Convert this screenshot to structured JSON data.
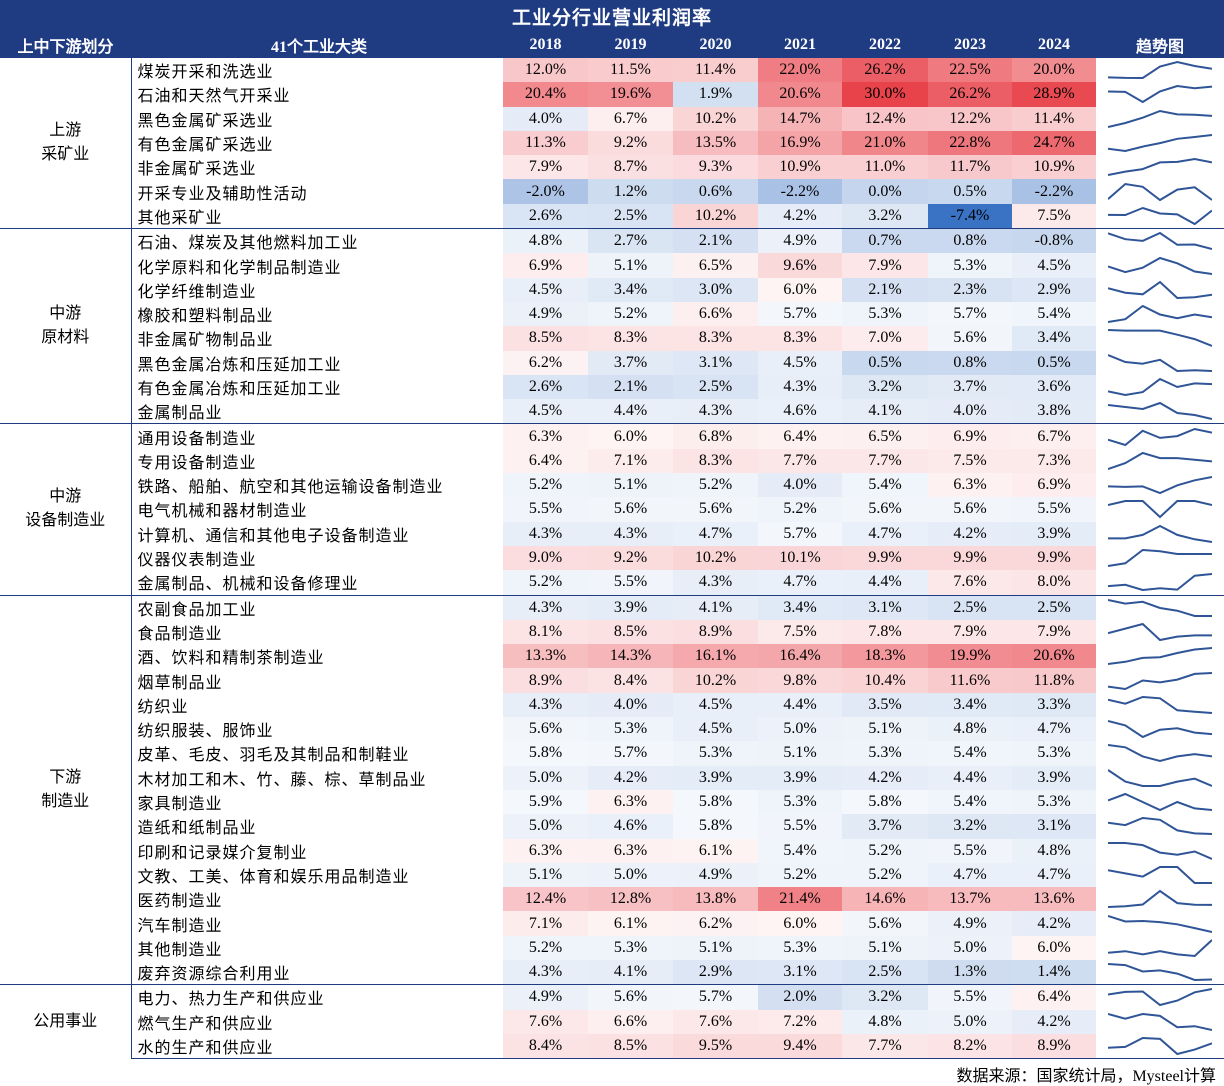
{
  "title": "工业分行业营业利润率",
  "headers": {
    "group": "上中下游划分",
    "industry": "41个工业大类",
    "years": [
      "2018",
      "2019",
      "2020",
      "2021",
      "2022",
      "2023",
      "2024"
    ],
    "trend": "趋势图"
  },
  "colors": {
    "header_bg": "#1f3b82",
    "positive": "#e8424a",
    "negative": "#3a72c4",
    "sparkline": "#2f5597"
  },
  "groups": [
    {
      "name": "上游\n采矿业",
      "rows": [
        {
          "name": "煤炭开采和洗选业",
          "values": [
            12.0,
            11.5,
            11.4,
            22.0,
            26.2,
            22.5,
            20.0
          ]
        },
        {
          "name": "石油和天然气开采业",
          "values": [
            20.4,
            19.6,
            1.9,
            20.6,
            30.0,
            26.2,
            28.9
          ]
        },
        {
          "name": "黑色金属矿采选业",
          "values": [
            4.0,
            6.7,
            10.2,
            14.7,
            12.4,
            12.2,
            11.4
          ]
        },
        {
          "name": "有色金属矿采选业",
          "values": [
            11.3,
            9.2,
            13.5,
            16.9,
            21.0,
            22.8,
            24.7
          ]
        },
        {
          "name": "非金属矿采选业",
          "values": [
            7.9,
            8.7,
            9.3,
            10.9,
            11.0,
            11.7,
            10.9
          ]
        },
        {
          "name": "开采专业及辅助性活动",
          "values": [
            -2.0,
            1.2,
            0.6,
            -2.2,
            0.0,
            0.5,
            -2.2
          ]
        },
        {
          "name": "其他采矿业",
          "values": [
            2.6,
            2.5,
            10.2,
            4.2,
            3.2,
            -7.4,
            7.5
          ]
        }
      ]
    },
    {
      "name": "中游\n原材料",
      "rows": [
        {
          "name": "石油、煤炭及其他燃料加工业",
          "values": [
            4.8,
            2.7,
            2.1,
            4.9,
            0.7,
            0.8,
            -0.8
          ]
        },
        {
          "name": "化学原料和化学制品制造业",
          "values": [
            6.9,
            5.1,
            6.5,
            9.6,
            7.9,
            5.3,
            4.5
          ]
        },
        {
          "name": "化学纤维制造业",
          "values": [
            4.5,
            3.4,
            3.0,
            6.0,
            2.1,
            2.3,
            2.9
          ]
        },
        {
          "name": "橡胶和塑料制品业",
          "values": [
            4.9,
            5.2,
            6.6,
            5.7,
            5.3,
            5.7,
            5.4
          ]
        },
        {
          "name": "非金属矿物制品业",
          "values": [
            8.5,
            8.3,
            8.3,
            8.3,
            7.0,
            5.6,
            3.4
          ]
        },
        {
          "name": "黑色金属冶炼和压延加工业",
          "values": [
            6.2,
            3.7,
            3.1,
            4.5,
            0.5,
            0.8,
            0.5
          ]
        },
        {
          "name": "有色金属冶炼和压延加工业",
          "values": [
            2.6,
            2.1,
            2.5,
            4.3,
            3.2,
            3.7,
            3.6
          ]
        },
        {
          "name": "金属制品业",
          "values": [
            4.5,
            4.4,
            4.3,
            4.6,
            4.1,
            4.0,
            3.8
          ]
        }
      ]
    },
    {
      "name": "中游\n设备制造业",
      "rows": [
        {
          "name": "通用设备制造业",
          "values": [
            6.3,
            6.0,
            6.8,
            6.4,
            6.5,
            6.9,
            6.7
          ]
        },
        {
          "name": "专用设备制造业",
          "values": [
            6.4,
            7.1,
            8.3,
            7.7,
            7.7,
            7.5,
            7.3
          ]
        },
        {
          "name": "铁路、船舶、航空和其他运输设备制造业",
          "values": [
            5.2,
            5.1,
            5.2,
            4.0,
            5.4,
            6.3,
            6.9
          ]
        },
        {
          "name": "电气机械和器材制造业",
          "values": [
            5.5,
            5.6,
            5.6,
            5.2,
            5.6,
            5.6,
            5.5
          ]
        },
        {
          "name": "计算机、通信和其他电子设备制造业",
          "values": [
            4.3,
            4.3,
            4.7,
            5.7,
            4.7,
            4.2,
            3.9
          ]
        },
        {
          "name": "仪器仪表制造业",
          "values": [
            9.0,
            9.2,
            10.2,
            10.1,
            9.9,
            9.9,
            9.9
          ]
        },
        {
          "name": "金属制品、机械和设备修理业",
          "values": [
            5.2,
            5.5,
            4.3,
            4.7,
            4.4,
            7.6,
            8.0
          ]
        }
      ]
    },
    {
      "name": "下游\n制造业",
      "rows": [
        {
          "name": "农副食品加工业",
          "values": [
            4.3,
            3.9,
            4.1,
            3.4,
            3.1,
            2.5,
            2.5
          ]
        },
        {
          "name": "食品制造业",
          "values": [
            8.1,
            8.5,
            8.9,
            7.5,
            7.8,
            7.9,
            7.9
          ]
        },
        {
          "name": "酒、饮料和精制茶制造业",
          "values": [
            13.3,
            14.3,
            16.1,
            16.4,
            18.3,
            19.9,
            20.6
          ]
        },
        {
          "name": "烟草制品业",
          "values": [
            8.9,
            8.4,
            10.2,
            9.8,
            10.4,
            11.6,
            11.8
          ]
        },
        {
          "name": "纺织业",
          "values": [
            4.3,
            4.0,
            4.5,
            4.4,
            3.5,
            3.4,
            3.3
          ]
        },
        {
          "name": "纺织服装、服饰业",
          "values": [
            5.6,
            5.3,
            4.5,
            5.0,
            5.1,
            4.8,
            4.7
          ]
        },
        {
          "name": "皮革、毛皮、羽毛及其制品和制鞋业",
          "values": [
            5.8,
            5.7,
            5.3,
            5.1,
            5.3,
            5.4,
            5.3
          ]
        },
        {
          "name": "木材加工和木、竹、藤、棕、草制品业",
          "values": [
            5.0,
            4.2,
            3.9,
            3.9,
            4.2,
            4.4,
            3.9
          ]
        },
        {
          "name": "家具制造业",
          "values": [
            5.9,
            6.3,
            5.8,
            5.3,
            5.8,
            5.4,
            5.3
          ]
        },
        {
          "name": "造纸和纸制品业",
          "values": [
            5.0,
            4.6,
            5.8,
            5.5,
            3.7,
            3.2,
            3.1
          ]
        },
        {
          "name": "印刷和记录媒介复制业",
          "values": [
            6.3,
            6.3,
            6.1,
            5.4,
            5.2,
            5.5,
            4.8
          ]
        },
        {
          "name": "文教、工美、体育和娱乐用品制造业",
          "values": [
            5.1,
            5.0,
            4.9,
            5.2,
            5.2,
            4.7,
            4.7
          ]
        },
        {
          "name": "医药制造业",
          "values": [
            12.4,
            12.8,
            13.8,
            21.4,
            14.6,
            13.7,
            13.6
          ]
        },
        {
          "name": "汽车制造业",
          "values": [
            7.1,
            6.1,
            6.2,
            6.0,
            5.6,
            4.9,
            4.2
          ]
        },
        {
          "name": "其他制造业",
          "values": [
            5.2,
            5.3,
            5.1,
            5.3,
            5.1,
            5.0,
            6.0
          ]
        },
        {
          "name": "废弃资源综合利用业",
          "values": [
            4.3,
            4.1,
            2.9,
            3.1,
            2.5,
            1.3,
            1.4
          ]
        }
      ]
    },
    {
      "name": "公用事业",
      "rows": [
        {
          "name": "电力、热力生产和供应业",
          "values": [
            4.9,
            5.6,
            5.7,
            2.0,
            3.2,
            5.5,
            6.4
          ]
        },
        {
          "name": "燃气生产和供应业",
          "values": [
            7.6,
            6.6,
            7.6,
            7.2,
            4.8,
            5.0,
            4.2
          ]
        },
        {
          "name": "水的生产和供应业",
          "values": [
            8.4,
            8.5,
            9.5,
            9.4,
            7.7,
            8.2,
            8.9
          ]
        }
      ]
    }
  ],
  "source": "数据来源：国家统计局，Mysteel计算",
  "chart_data": {
    "type": "table",
    "title": "工业分行业营业利润率",
    "columns": [
      "2018",
      "2019",
      "2020",
      "2021",
      "2022",
      "2023",
      "2024"
    ],
    "unit": "%",
    "note": "Heatmap-colored table with per-row sparklines; row values listed under groups[].rows[].values"
  }
}
